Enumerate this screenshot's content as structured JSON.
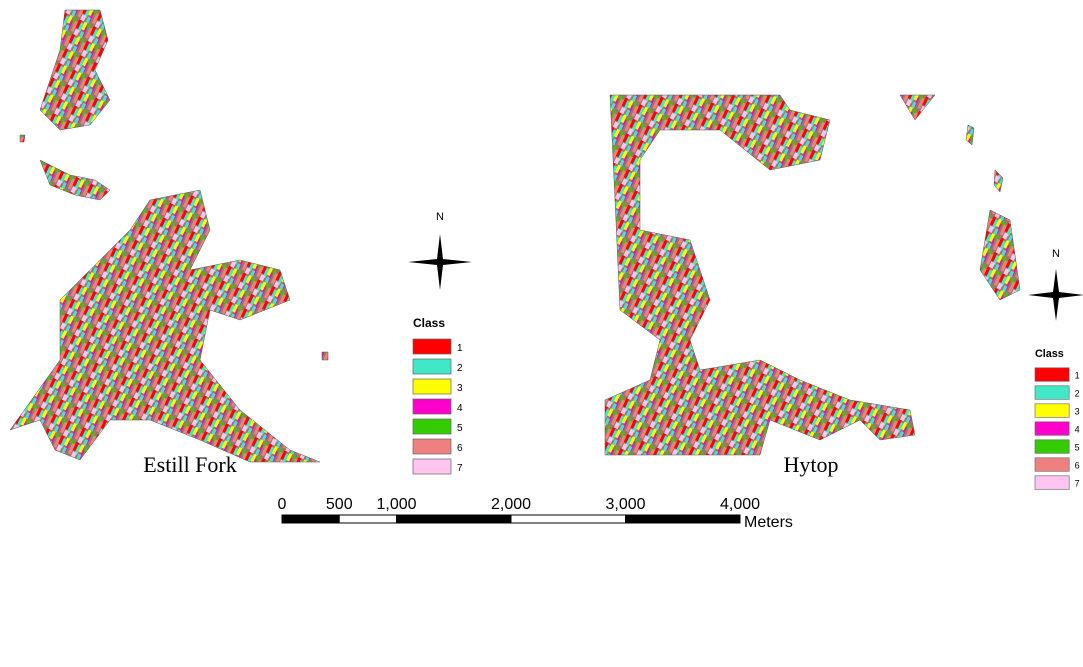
{
  "maps": [
    {
      "caption": "Estill Fork",
      "north": "N",
      "legend": {
        "title": "Class",
        "items": [
          {
            "label": "1",
            "color": "#ff0000"
          },
          {
            "label": "2",
            "color": "#40e8c8"
          },
          {
            "label": "3",
            "color": "#ffff00"
          },
          {
            "label": "4",
            "color": "#ff00cc"
          },
          {
            "label": "5",
            "color": "#33cc00"
          },
          {
            "label": "6",
            "color": "#f08080"
          },
          {
            "label": "7",
            "color": "#ffc4f0"
          }
        ]
      }
    },
    {
      "caption": "Hytop",
      "north": "N",
      "legend": {
        "title": "Class",
        "items": [
          {
            "label": "1",
            "color": "#ff0000"
          },
          {
            "label": "2",
            "color": "#40e8c8"
          },
          {
            "label": "3",
            "color": "#ffff00"
          },
          {
            "label": "4",
            "color": "#ff00cc"
          },
          {
            "label": "5",
            "color": "#33cc00"
          },
          {
            "label": "6",
            "color": "#f08080"
          },
          {
            "label": "7",
            "color": "#ffc4f0"
          }
        ]
      }
    }
  ],
  "scale_bar": {
    "ticks": [
      0,
      500,
      {
        "value": 1000,
        "label": "1,000"
      },
      {
        "value": 2000,
        "label": "2,000"
      },
      {
        "value": 3000,
        "label": "3,000"
      },
      {
        "value": 4000,
        "label": "4,000"
      }
    ],
    "unit": "Meters"
  }
}
